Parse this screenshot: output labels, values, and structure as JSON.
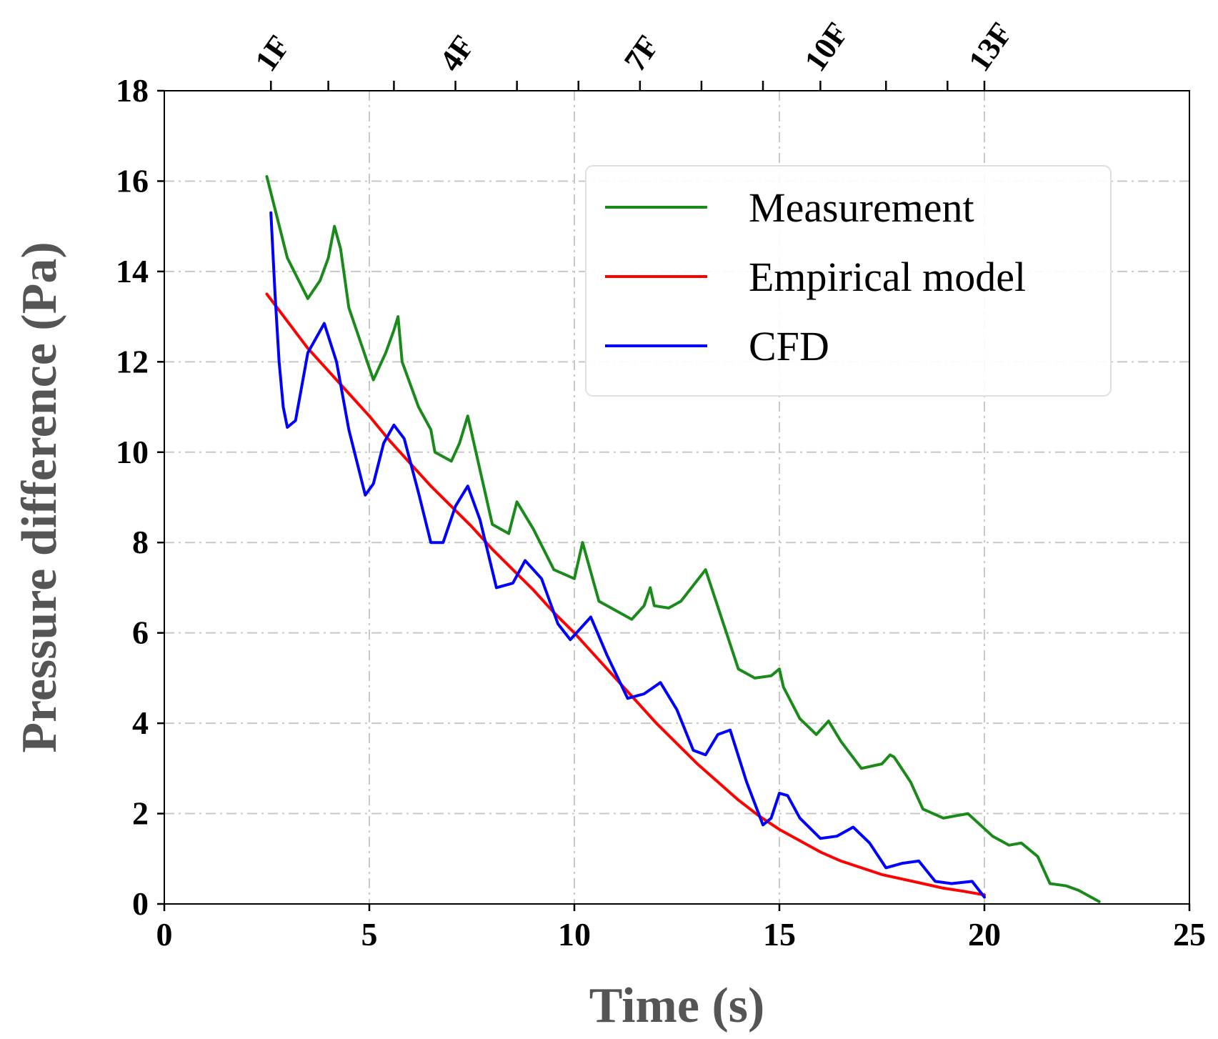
{
  "chart_data": {
    "type": "line",
    "title": "",
    "xlabel": "Time (s)",
    "ylabel": "Pressure difference (Pa)",
    "xlim": [
      0,
      25
    ],
    "ylim": [
      0,
      18
    ],
    "xticks": [
      0,
      5,
      10,
      15,
      20,
      25
    ],
    "yticks": [
      0,
      2,
      4,
      6,
      8,
      10,
      12,
      14,
      16,
      18
    ],
    "grid": true,
    "legend_position": "top-right",
    "top_axis": {
      "minor_ticks": [
        2.6,
        4.0,
        5.6,
        7.1,
        8.6,
        10.1,
        11.6,
        13.1,
        14.6,
        16.0,
        17.6,
        19.1,
        20.0
      ],
      "labels": [
        {
          "x": 2.6,
          "text": "1F"
        },
        {
          "x": 7.1,
          "text": "4F"
        },
        {
          "x": 11.6,
          "text": "7F"
        },
        {
          "x": 16.0,
          "text": "10F"
        },
        {
          "x": 20.0,
          "text": "13F"
        }
      ]
    },
    "series": [
      {
        "name": "Measurement",
        "color": "#1a8a1a",
        "x": [
          2.5,
          3.0,
          3.5,
          3.8,
          4.0,
          4.15,
          4.3,
          4.5,
          5.1,
          5.4,
          5.6,
          5.7,
          5.8,
          6.2,
          6.5,
          6.6,
          7.0,
          7.2,
          7.4,
          8.0,
          8.4,
          8.6,
          9.0,
          9.5,
          10.0,
          10.2,
          10.6,
          11.4,
          11.7,
          11.85,
          11.95,
          12.3,
          12.6,
          13.2,
          14.0,
          14.4,
          14.8,
          15.0,
          15.1,
          15.5,
          15.9,
          16.2,
          16.5,
          17.0,
          17.5,
          17.7,
          17.8,
          18.2,
          18.5,
          19.0,
          19.3,
          19.6,
          20.2,
          20.6,
          20.9,
          21.3,
          21.6,
          22.0,
          22.3,
          22.8
        ],
        "values": [
          16.1,
          14.3,
          13.4,
          13.8,
          14.3,
          15.0,
          14.5,
          13.2,
          11.6,
          12.2,
          12.7,
          13.0,
          12.0,
          11.0,
          10.5,
          10.0,
          9.8,
          10.2,
          10.8,
          8.4,
          8.2,
          8.9,
          8.3,
          7.4,
          7.2,
          8.0,
          6.7,
          6.3,
          6.6,
          7.0,
          6.6,
          6.55,
          6.7,
          7.4,
          5.2,
          5.0,
          5.05,
          5.2,
          4.8,
          4.1,
          3.75,
          4.05,
          3.6,
          3.0,
          3.1,
          3.3,
          3.25,
          2.7,
          2.1,
          1.9,
          1.95,
          2.0,
          1.5,
          1.3,
          1.35,
          1.05,
          0.45,
          0.4,
          0.3,
          0.05
        ]
      },
      {
        "name": "Empirical model",
        "color": "#ff0000",
        "x": [
          2.5,
          3.0,
          3.5,
          4.0,
          4.5,
          5.0,
          5.5,
          6.0,
          6.5,
          7.0,
          7.5,
          8.0,
          8.5,
          9.0,
          9.5,
          10.0,
          10.5,
          11.0,
          11.5,
          12.0,
          12.5,
          13.0,
          13.5,
          14.0,
          14.5,
          15.0,
          15.5,
          16.0,
          16.5,
          17.0,
          17.5,
          18.0,
          18.5,
          19.0,
          19.5,
          20.0
        ],
        "values": [
          13.5,
          12.9,
          12.3,
          11.8,
          11.3,
          10.8,
          10.25,
          9.75,
          9.25,
          8.8,
          8.35,
          7.85,
          7.4,
          6.95,
          6.45,
          6.0,
          5.5,
          5.0,
          4.5,
          4.0,
          3.55,
          3.1,
          2.7,
          2.3,
          1.95,
          1.65,
          1.4,
          1.15,
          0.95,
          0.8,
          0.65,
          0.55,
          0.45,
          0.35,
          0.28,
          0.2
        ]
      },
      {
        "name": "CFD",
        "color": "#0000ff",
        "x": [
          2.6,
          2.7,
          2.8,
          2.9,
          3.0,
          3.2,
          3.5,
          3.9,
          4.2,
          4.5,
          4.9,
          5.1,
          5.35,
          5.6,
          5.85,
          6.2,
          6.5,
          6.8,
          7.1,
          7.4,
          7.7,
          8.1,
          8.5,
          8.8,
          9.2,
          9.6,
          9.9,
          10.4,
          10.8,
          11.3,
          11.7,
          12.1,
          12.5,
          12.9,
          13.2,
          13.5,
          13.8,
          14.2,
          14.6,
          14.8,
          15.0,
          15.2,
          15.5,
          16.0,
          16.4,
          16.8,
          17.2,
          17.6,
          18.0,
          18.4,
          18.8,
          19.2,
          19.7,
          20.0
        ],
        "values": [
          15.3,
          13.5,
          12.0,
          11.0,
          10.55,
          10.7,
          12.2,
          12.85,
          12.0,
          10.5,
          9.05,
          9.3,
          10.2,
          10.6,
          10.3,
          9.1,
          8.0,
          8.0,
          8.8,
          9.25,
          8.5,
          7.0,
          7.1,
          7.6,
          7.2,
          6.2,
          5.85,
          6.35,
          5.5,
          4.55,
          4.65,
          4.9,
          4.3,
          3.4,
          3.3,
          3.75,
          3.85,
          2.7,
          1.75,
          1.9,
          2.45,
          2.4,
          1.9,
          1.45,
          1.5,
          1.7,
          1.35,
          0.8,
          0.9,
          0.95,
          0.5,
          0.45,
          0.5,
          0.15
        ]
      }
    ]
  }
}
